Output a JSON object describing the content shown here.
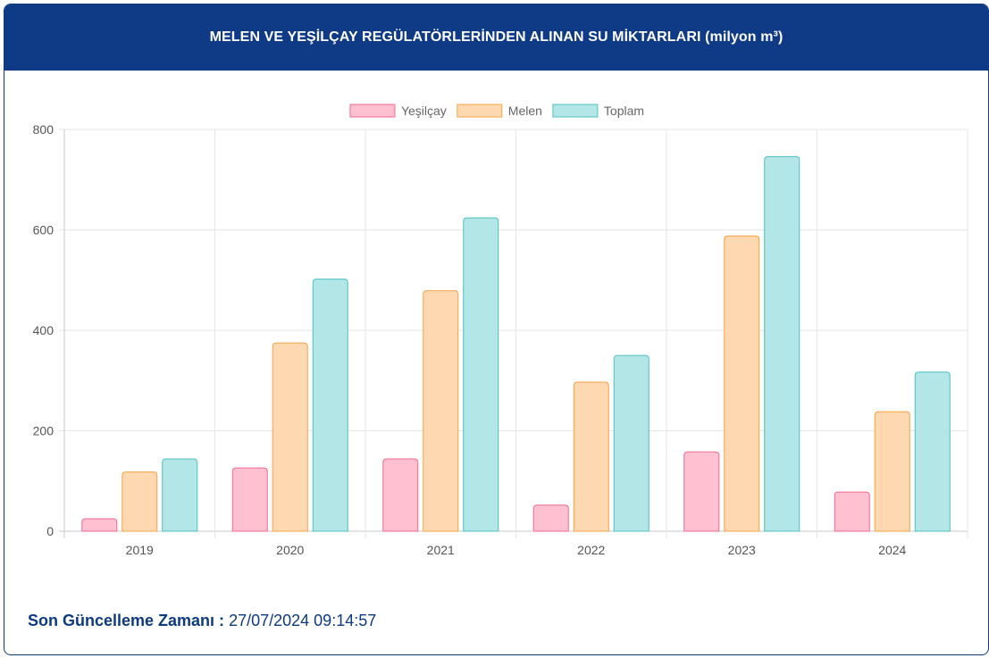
{
  "header": {
    "title": "MELEN VE YEŞİLÇAY REGÜLATÖRLERİNDEN ALINAN SU MİKTARLARI (milyon m³)"
  },
  "footer": {
    "label": "Son Güncelleme Zamanı :",
    "value": "27/07/2024 09:14:57"
  },
  "colors": {
    "header_bg": "#0e3a86",
    "yesilcay_fill": "#ffc1d2",
    "yesilcay_stroke": "#f06a8e",
    "melen_fill": "#fed8b0",
    "melen_stroke": "#f5a345",
    "toplam_fill": "#b3e6e6",
    "toplam_stroke": "#4dc0c0"
  },
  "chart_data": {
    "type": "bar",
    "categories": [
      "2019",
      "2020",
      "2021",
      "2022",
      "2023",
      "2024"
    ],
    "series": [
      {
        "name": "Yeşilçay",
        "values": [
          25,
          126,
          144,
          52,
          158,
          78
        ]
      },
      {
        "name": "Melen",
        "values": [
          118,
          375,
          479,
          297,
          588,
          238
        ]
      },
      {
        "name": "Toplam",
        "values": [
          144,
          502,
          624,
          350,
          746,
          317
        ]
      }
    ],
    "ylim": [
      0,
      800
    ],
    "yticks": [
      "0",
      "200",
      "400",
      "600",
      "800"
    ],
    "grid": true,
    "legend": "top-center"
  }
}
